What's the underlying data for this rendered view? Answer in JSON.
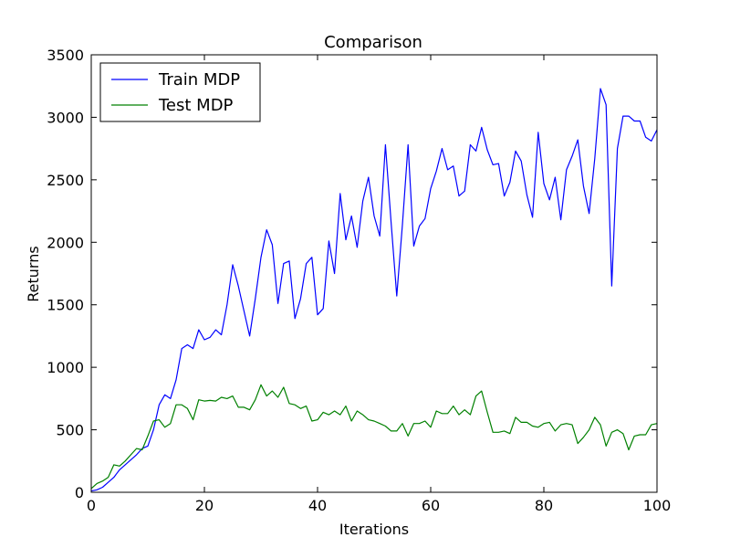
{
  "chart_data": {
    "type": "line",
    "title": "Comparison",
    "xlabel": "Iterations",
    "ylabel": "Returns",
    "xlim": [
      0,
      100
    ],
    "ylim": [
      0,
      3500
    ],
    "xticks": [
      0,
      20,
      40,
      60,
      80,
      100
    ],
    "yticks": [
      0,
      500,
      1000,
      1500,
      2000,
      2500,
      3000,
      3500
    ],
    "grid": false,
    "legend_position": "top-left",
    "series": [
      {
        "name": "Train MDP",
        "color": "#0000ff",
        "x": [
          0,
          1,
          2,
          3,
          4,
          5,
          6,
          7,
          8,
          9,
          10,
          11,
          12,
          13,
          14,
          15,
          16,
          17,
          18,
          19,
          20,
          21,
          22,
          23,
          24,
          25,
          26,
          27,
          28,
          29,
          30,
          31,
          32,
          33,
          34,
          35,
          36,
          37,
          38,
          39,
          40,
          41,
          42,
          43,
          44,
          45,
          46,
          47,
          48,
          49,
          50,
          51,
          52,
          53,
          54,
          55,
          56,
          57,
          58,
          59,
          60,
          61,
          62,
          63,
          64,
          65,
          66,
          67,
          68,
          69,
          70,
          71,
          72,
          73,
          74,
          75,
          76,
          77,
          78,
          79,
          80,
          81,
          82,
          83,
          84,
          85,
          86,
          87,
          88,
          89,
          90,
          91,
          92,
          93,
          94,
          95,
          96,
          97,
          98,
          99,
          100
        ],
        "values": [
          10,
          20,
          40,
          80,
          120,
          180,
          220,
          260,
          300,
          350,
          370,
          500,
          700,
          780,
          750,
          900,
          1150,
          1180,
          1150,
          1300,
          1220,
          1240,
          1300,
          1260,
          1500,
          1820,
          1650,
          1450,
          1250,
          1550,
          1880,
          2100,
          1980,
          1510,
          1830,
          1850,
          1390,
          1550,
          1830,
          1880,
          1420,
          1470,
          2010,
          1750,
          2390,
          2020,
          2210,
          1960,
          2330,
          2520,
          2210,
          2050,
          2780,
          2160,
          1570,
          2140,
          2780,
          1970,
          2130,
          2190,
          2430,
          2570,
          2750,
          2580,
          2610,
          2370,
          2410,
          2780,
          2730,
          2920,
          2740,
          2620,
          2630,
          2370,
          2480,
          2730,
          2650,
          2380,
          2200,
          2880,
          2470,
          2340,
          2520,
          2180,
          2580,
          2690,
          2820,
          2450,
          2230,
          2670,
          3230,
          3100,
          1650,
          2750,
          3010,
          3010,
          2970,
          2970,
          2840,
          2810,
          2900
        ]
      },
      {
        "name": "Test MDP",
        "color": "#008000",
        "x": [
          0,
          1,
          2,
          3,
          4,
          5,
          6,
          7,
          8,
          9,
          10,
          11,
          12,
          13,
          14,
          15,
          16,
          17,
          18,
          19,
          20,
          21,
          22,
          23,
          24,
          25,
          26,
          27,
          28,
          29,
          30,
          31,
          32,
          33,
          34,
          35,
          36,
          37,
          38,
          39,
          40,
          41,
          42,
          43,
          44,
          45,
          46,
          47,
          48,
          49,
          50,
          51,
          52,
          53,
          54,
          55,
          56,
          57,
          58,
          59,
          60,
          61,
          62,
          63,
          64,
          65,
          66,
          67,
          68,
          69,
          70,
          71,
          72,
          73,
          74,
          75,
          76,
          77,
          78,
          79,
          80,
          81,
          82,
          83,
          84,
          85,
          86,
          87,
          88,
          89,
          90,
          91,
          92,
          93,
          94,
          95,
          96,
          97,
          98,
          99,
          100
        ],
        "values": [
          30,
          70,
          90,
          120,
          220,
          210,
          250,
          300,
          350,
          340,
          450,
          570,
          580,
          520,
          550,
          700,
          700,
          670,
          580,
          740,
          730,
          735,
          730,
          760,
          750,
          770,
          680,
          680,
          660,
          740,
          860,
          770,
          810,
          760,
          840,
          710,
          700,
          670,
          690,
          570,
          580,
          640,
          620,
          650,
          620,
          690,
          570,
          650,
          620,
          580,
          570,
          550,
          530,
          490,
          490,
          550,
          450,
          550,
          550,
          570,
          520,
          650,
          630,
          630,
          690,
          620,
          660,
          620,
          770,
          810,
          640,
          480,
          480,
          490,
          470,
          600,
          560,
          560,
          530,
          520,
          550,
          560,
          490,
          540,
          550,
          540,
          390,
          440,
          500,
          600,
          540,
          370,
          480,
          500,
          470,
          340,
          450,
          460,
          460,
          540,
          550
        ]
      }
    ]
  }
}
